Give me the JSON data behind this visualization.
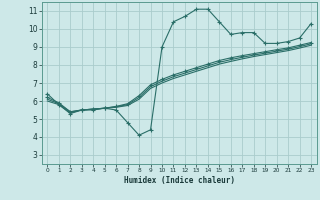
{
  "bg_color": "#cde8e8",
  "grid_color": "#aacccc",
  "line_color": "#2a6e68",
  "xlabel": "Humidex (Indice chaleur)",
  "ylim": [
    2.5,
    11.5
  ],
  "xlim": [
    -0.5,
    23.5
  ],
  "yticks": [
    3,
    4,
    5,
    6,
    7,
    8,
    9,
    10,
    11
  ],
  "xticks": [
    0,
    1,
    2,
    3,
    4,
    5,
    6,
    7,
    8,
    9,
    10,
    11,
    12,
    13,
    14,
    15,
    16,
    17,
    18,
    19,
    20,
    21,
    22,
    23
  ],
  "series1_x": [
    0,
    1,
    2,
    3,
    4,
    5,
    6,
    7,
    8,
    9,
    10,
    11,
    12,
    13,
    14,
    15,
    16,
    17,
    18,
    19,
    20,
    21,
    22,
    23
  ],
  "series1_y": [
    6.4,
    5.8,
    5.3,
    5.5,
    5.5,
    5.6,
    5.5,
    4.8,
    4.1,
    4.4,
    9.0,
    10.4,
    10.7,
    11.1,
    11.1,
    10.4,
    9.7,
    9.8,
    9.8,
    9.2,
    9.2,
    9.3,
    9.5,
    10.3
  ],
  "series2_x": [
    0,
    1,
    2,
    3,
    4,
    5,
    6,
    7,
    8,
    9,
    10,
    11,
    12,
    13,
    14,
    15,
    16,
    17,
    18,
    19,
    20,
    21,
    22,
    23
  ],
  "series2_y": [
    6.2,
    5.9,
    5.4,
    5.5,
    5.55,
    5.6,
    5.7,
    5.85,
    6.3,
    6.9,
    7.2,
    7.45,
    7.65,
    7.85,
    8.05,
    8.25,
    8.4,
    8.52,
    8.63,
    8.74,
    8.85,
    8.95,
    9.1,
    9.25
  ],
  "series3_x": [
    0,
    1,
    2,
    3,
    4,
    5,
    6,
    7,
    8,
    9,
    10,
    11,
    12,
    13,
    14,
    15,
    16,
    17,
    18,
    19,
    20,
    21,
    22,
    23
  ],
  "series3_y": [
    6.1,
    5.85,
    5.4,
    5.5,
    5.55,
    5.6,
    5.68,
    5.8,
    6.2,
    6.8,
    7.1,
    7.35,
    7.55,
    7.75,
    7.95,
    8.15,
    8.3,
    8.43,
    8.55,
    8.66,
    8.77,
    8.88,
    9.02,
    9.18
  ],
  "series4_x": [
    0,
    1,
    2,
    3,
    4,
    5,
    6,
    7,
    8,
    9,
    10,
    11,
    12,
    13,
    14,
    15,
    16,
    17,
    18,
    19,
    20,
    21,
    22,
    23
  ],
  "series4_y": [
    6.0,
    5.8,
    5.35,
    5.5,
    5.55,
    5.6,
    5.65,
    5.75,
    6.1,
    6.7,
    7.0,
    7.25,
    7.45,
    7.65,
    7.85,
    8.05,
    8.2,
    8.34,
    8.47,
    8.58,
    8.69,
    8.8,
    8.94,
    9.1
  ]
}
